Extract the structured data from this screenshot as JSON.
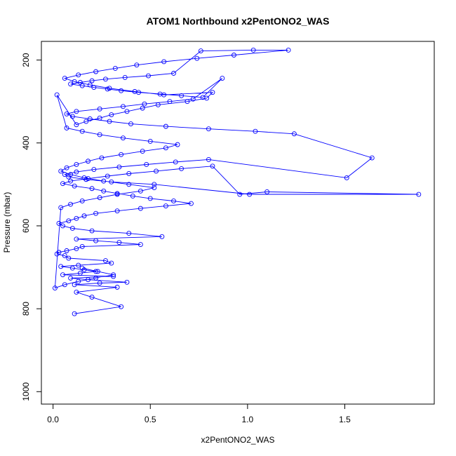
{
  "chart_data": {
    "type": "line",
    "title": "ATOM1 Northbound x2PentONO2_WAS",
    "xlabel": "x2PentONO2_WAS",
    "ylabel": "Pressure (mbar)",
    "xlim": [
      -0.06,
      1.96
    ],
    "ylim": [
      1030,
      155
    ],
    "y_reversed": true,
    "x_ticks": [
      0.0,
      0.5,
      1.0,
      1.5
    ],
    "x_tick_labels": [
      "0.0",
      "0.5",
      "1.0",
      "1.5"
    ],
    "y_ticks": [
      200,
      400,
      600,
      800,
      1000
    ],
    "y_tick_labels": [
      "200",
      "400",
      "600",
      "800",
      "1000"
    ],
    "markers": "open-circle",
    "series_color": "#0000ff",
    "series": [
      {
        "x": [
          0.11,
          0.35,
          0.2,
          0.12,
          0.33,
          0.11,
          0.24,
          0.38,
          0.18,
          0.09,
          0.31,
          0.05,
          0.14,
          0.22,
          0.16,
          0.1,
          0.04,
          0.13,
          0.3,
          0.27,
          0.08,
          0.06,
          0.02,
          0.03,
          0.07,
          0.12,
          0.15,
          0.45,
          0.34,
          0.22,
          0.12,
          0.56,
          0.39,
          0.2,
          0.1,
          0.05,
          0.03,
          0.08,
          0.12,
          0.16,
          0.22,
          0.33,
          0.45,
          0.58,
          0.71,
          0.62,
          0.5,
          0.41,
          0.33,
          0.26,
          0.2,
          0.11,
          0.05,
          0.09,
          0.18,
          0.28,
          0.39,
          0.53,
          0.66,
          0.82,
          0.96,
          1.1,
          1.88,
          1.01,
          0.52,
          0.3,
          0.17,
          0.08,
          0.06,
          0.12,
          0.21,
          0.34,
          0.48,
          0.63,
          0.8,
          1.51,
          1.64,
          1.24,
          1.04,
          0.8,
          0.58,
          0.4,
          0.29,
          0.19,
          0.1,
          0.07,
          0.12,
          0.24,
          0.36,
          0.47,
          0.6,
          0.72,
          0.87,
          0.77,
          0.66,
          0.55,
          0.44,
          0.35,
          0.28,
          0.21,
          0.15,
          0.09,
          0.14,
          0.2,
          0.27,
          0.37,
          0.49,
          0.62,
          0.76,
          1.03,
          1.21,
          0.93,
          0.74,
          0.57,
          0.43,
          0.32,
          0.22,
          0.13,
          0.06,
          0.11,
          0.19,
          0.29,
          0.42,
          0.57,
          0.82,
          0.79,
          0.69,
          0.54,
          0.46,
          0.38,
          0.3,
          0.24,
          0.17,
          0.12,
          0.02,
          0.07,
          0.15,
          0.24,
          0.36,
          0.5,
          0.64,
          0.58,
          0.46,
          0.35,
          0.25,
          0.18,
          0.12,
          0.07,
          0.04,
          0.09,
          0.16,
          0.26,
          0.39,
          0.52,
          0.45,
          0.33,
          0.24,
          0.15,
          0.09,
          0.04,
          0.01,
          0.06,
          0.13,
          0.22,
          0.31,
          0.23,
          0.15
        ],
        "y": [
          812,
          795,
          772,
          760,
          748,
          742,
          738,
          736,
          730,
          726,
          722,
          718,
          714,
          710,
          706,
          702,
          698,
          695,
          690,
          684,
          678,
          672,
          668,
          664,
          660,
          655,
          650,
          645,
          640,
          636,
          632,
          626,
          618,
          612,
          606,
          600,
          594,
          588,
          582,
          576,
          570,
          564,
          558,
          552,
          546,
          540,
          534,
          528,
          522,
          516,
          510,
          504,
          498,
          492,
          486,
          480,
          474,
          468,
          462,
          456,
          524,
          518,
          524,
          524,
          500,
          494,
          488,
          482,
          476,
          470,
          464,
          458,
          452,
          446,
          440,
          484,
          436,
          378,
          372,
          366,
          360,
          354,
          348,
          342,
          336,
          330,
          324,
          318,
          312,
          306,
          300,
          294,
          244,
          290,
          286,
          282,
          278,
          274,
          270,
          266,
          262,
          258,
          254,
          250,
          246,
          242,
          238,
          232,
          178,
          176,
          176,
          188,
          196,
          204,
          212,
          220,
          228,
          236,
          244,
          252,
          260,
          268,
          276,
          284,
          278,
          292,
          300,
          308,
          316,
          324,
          332,
          340,
          348,
          356,
          284,
          364,
          372,
          380,
          388,
          396,
          404,
          412,
          420,
          428,
          436,
          444,
          452,
          460,
          468,
          476,
          484,
          492,
          500,
          508,
          516,
          524,
          532,
          540,
          548,
          556,
          750,
          742,
          734,
          726,
          718,
          710,
          702
        ]
      }
    ]
  }
}
